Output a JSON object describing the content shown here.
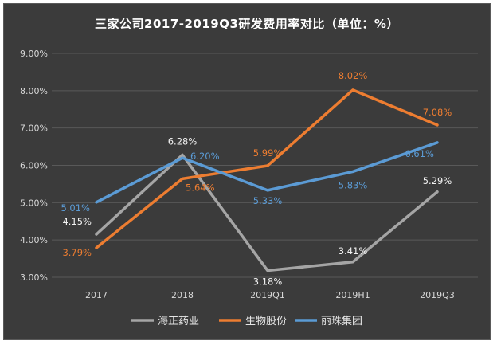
{
  "chart_data": {
    "type": "line",
    "title": "三家公司2017-2019Q3研发费用率对比（单位：%）",
    "categories": [
      "2017",
      "2018",
      "2019Q1",
      "2019H1",
      "2019Q3"
    ],
    "ylim": [
      3.0,
      9.0
    ],
    "yticks": [
      "3.00%",
      "4.00%",
      "5.00%",
      "6.00%",
      "7.00%",
      "8.00%",
      "9.00%"
    ],
    "yticks_values": [
      3.0,
      4.0,
      5.0,
      6.0,
      7.0,
      8.0,
      9.0
    ],
    "grid": true,
    "legend_position": "bottom",
    "series": [
      {
        "name": "海正药业",
        "color": "#a5a5a5",
        "values": [
          4.15,
          6.28,
          3.18,
          3.41,
          5.29
        ],
        "labels": [
          "4.15%",
          "6.28%",
          "3.18%",
          "3.41%",
          "5.29%"
        ]
      },
      {
        "name": "生物股份",
        "color": "#ed7d31",
        "values": [
          3.79,
          5.64,
          5.99,
          8.02,
          7.08
        ],
        "labels": [
          "3.79%",
          "5.64%",
          "5.99%",
          "8.02%",
          "7.08%"
        ]
      },
      {
        "name": "丽珠集团",
        "color": "#5b9bd5",
        "values": [
          5.01,
          6.2,
          5.33,
          5.83,
          6.61
        ],
        "labels": [
          "5.01%",
          "6.20%",
          "5.33%",
          "5.83%",
          "6.61%"
        ]
      }
    ]
  }
}
